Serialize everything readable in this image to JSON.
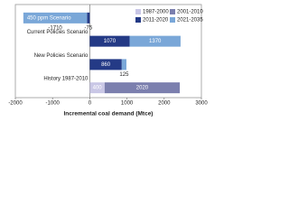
{
  "chart_data": {
    "type": "stacked-barh",
    "x_label": "Incremental coal demand (Mtce)",
    "categories": [
      "450 ppm Scenario",
      "Current Policies Scenario",
      "New Policies Scenario",
      "History 1987-2010"
    ],
    "series": [
      {
        "name": "1987-2000",
        "color": "#c9c7e6",
        "values": [
          null,
          null,
          null,
          400
        ]
      },
      {
        "name": "2001-2010",
        "color": "#7b7fae",
        "values": [
          null,
          null,
          null,
          2020
        ]
      },
      {
        "name": "2011-2020",
        "color": "#243a86",
        "values": [
          -75,
          1070,
          860,
          null
        ]
      },
      {
        "name": "2021-2035",
        "color": "#7aa7d8",
        "values": [
          -1710,
          1370,
          125,
          null
        ]
      }
    ],
    "xlim": [
      -2000,
      3000
    ],
    "xticks": [
      -2000,
      -1000,
      0,
      1000,
      2000,
      3000
    ],
    "legend": "top-right"
  }
}
